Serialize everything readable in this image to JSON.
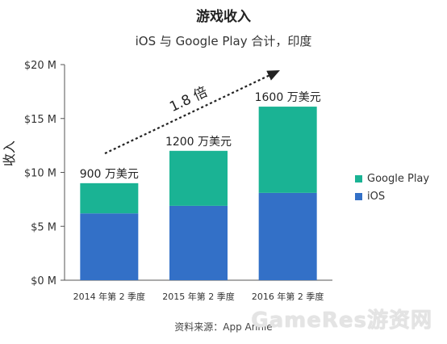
{
  "chart_data": {
    "type": "bar",
    "stacked": true,
    "title": "游戏收入",
    "subtitle": "iOS 与 Google Play 合计，印度",
    "ylabel": "收入",
    "xlabel": "",
    "categories": [
      "2014 年第 2 季度",
      "2015 年第 2 季度",
      "2016 年第 2 季度"
    ],
    "series": [
      {
        "name": "iOS",
        "color": "#3370C7",
        "values": [
          6.2,
          6.9,
          8.1
        ]
      },
      {
        "name": "Google Play",
        "color": "#1AB394",
        "values": [
          2.8,
          5.1,
          8.0
        ]
      }
    ],
    "totals_labels": [
      "900 万美元",
      "1200 万美元",
      "1600 万美元"
    ],
    "ylim": [
      0,
      20
    ],
    "yticks": [
      0,
      5,
      10,
      15,
      20
    ],
    "ytick_labels": [
      "$0 M",
      "$5 M",
      "$10 M",
      "$15 M",
      "$20 M"
    ],
    "legend_position": "right",
    "grid": false,
    "annotation": "1.8 倍"
  },
  "source": "资料来源：App Annie",
  "watermark": "GameRes游资网"
}
